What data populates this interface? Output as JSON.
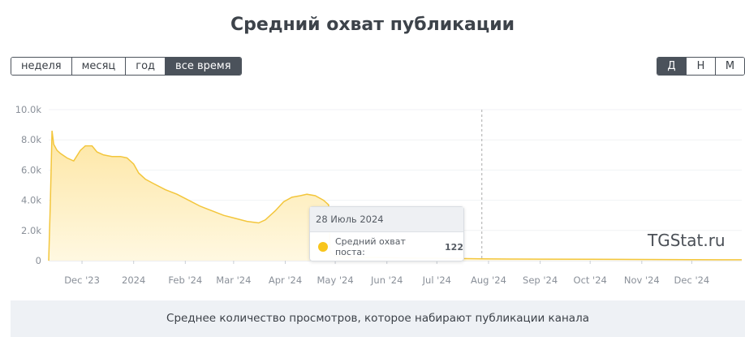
{
  "title": "Средний охват публикации",
  "range_buttons": [
    {
      "label": "неделя",
      "active": false
    },
    {
      "label": "месяц",
      "active": false
    },
    {
      "label": "год",
      "active": false
    },
    {
      "label": "все время",
      "active": true
    }
  ],
  "scale_buttons": [
    {
      "label": "Д",
      "active": true
    },
    {
      "label": "Н",
      "active": false
    },
    {
      "label": "М",
      "active": false
    }
  ],
  "watermark": "TGStat.ru",
  "tooltip": {
    "date": "28 Июль 2024",
    "series_label": "Средний охват поста:",
    "value": "122"
  },
  "footer_text": "Среднее количество просмотров, которое набирают публикации канала",
  "colors": {
    "series": "#f8c51c",
    "fill_top": "#fde6a3",
    "fill_bottom": "#fff8e1",
    "active_button": "#4b525b"
  },
  "chart_data": {
    "type": "area",
    "title": "",
    "xlabel": "",
    "ylabel": "",
    "ylim": [
      0,
      10000
    ],
    "y_ticks": [
      "0",
      "2.0k",
      "4.0k",
      "6.0k",
      "8.0k",
      "10.0k"
    ],
    "x_ticks": [
      {
        "label": "Dec '23",
        "x": "2023-12-01"
      },
      {
        "label": "2024",
        "x": "2024-01-01"
      },
      {
        "label": "Feb '24",
        "x": "2024-02-01"
      },
      {
        "label": "Mar '24",
        "x": "2024-03-01"
      },
      {
        "label": "Apr '24",
        "x": "2024-04-01"
      },
      {
        "label": "May '24",
        "x": "2024-05-01"
      },
      {
        "label": "Jun '24",
        "x": "2024-06-01"
      },
      {
        "label": "Jul '24",
        "x": "2024-07-01"
      },
      {
        "label": "Aug '24",
        "x": "2024-08-01"
      },
      {
        "label": "Sep '24",
        "x": "2024-09-01"
      },
      {
        "label": "Oct '24",
        "x": "2024-10-01"
      },
      {
        "label": "Nov '24",
        "x": "2024-11-01"
      },
      {
        "label": "Dec '24",
        "x": "2024-12-01"
      }
    ],
    "grid": true,
    "crosshair_x": "2024-07-28",
    "series": [
      {
        "x": [
          "2023-11-11",
          "2023-11-12",
          "2023-11-13",
          "2023-11-14",
          "2023-11-16",
          "2023-11-18",
          "2023-11-22",
          "2023-11-26",
          "2023-11-30",
          "2023-12-03",
          "2023-12-07",
          "2023-12-10",
          "2023-12-14",
          "2023-12-19",
          "2023-12-24",
          "2023-12-28",
          "2024-01-01",
          "2024-01-04",
          "2024-01-08",
          "2024-01-13",
          "2024-01-20",
          "2024-01-27",
          "2024-02-03",
          "2024-02-10",
          "2024-02-17",
          "2024-02-24",
          "2024-03-02",
          "2024-03-09",
          "2024-03-16",
          "2024-03-20",
          "2024-03-26",
          "2024-03-31",
          "2024-04-05",
          "2024-04-10",
          "2024-04-14",
          "2024-04-19",
          "2024-04-24",
          "2024-04-27",
          "2024-04-28",
          "2024-04-30",
          "2024-05-05",
          "2024-05-15",
          "2024-05-31",
          "2024-06-15",
          "2024-07-01",
          "2024-07-15",
          "2024-07-28",
          "2024-08-15",
          "2024-09-01",
          "2024-10-01",
          "2024-11-01",
          "2024-12-01",
          "2024-12-31"
        ],
        "values": [
          0,
          4000,
          8600,
          7700,
          7300,
          7100,
          6800,
          6600,
          7300,
          7600,
          7600,
          7200,
          7000,
          6900,
          6900,
          6800,
          6400,
          5800,
          5400,
          5100,
          4700,
          4400,
          4000,
          3600,
          3300,
          3000,
          2800,
          2600,
          2500,
          2700,
          3300,
          3900,
          4200,
          4300,
          4400,
          4300,
          4000,
          3700,
          600,
          350,
          250,
          220,
          200,
          180,
          160,
          140,
          122,
          110,
          100,
          90,
          80,
          70,
          60
        ]
      }
    ]
  }
}
